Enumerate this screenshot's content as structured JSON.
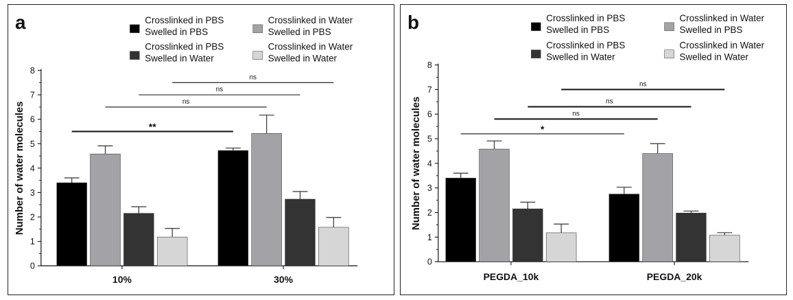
{
  "colors": {
    "pbs_pbs": "#000000",
    "water_pbs": "#a3a3a7",
    "pbs_water": "#333333",
    "water_water": "#d6d6d6"
  },
  "chart_data": [
    {
      "type": "bar",
      "panel_label": "a",
      "title": "",
      "xlabel": "",
      "ylabel": "Number of water molecules",
      "ylim": [
        0,
        8
      ],
      "yticks": [
        "0",
        "1",
        "2",
        "3",
        "4",
        "5",
        "6",
        "7",
        "8"
      ],
      "categories": [
        "10%",
        "30%"
      ],
      "legend": [
        {
          "key": "pbs_pbs",
          "line1": "Crosslinked in PBS",
          "line2": "Swelled in PBS"
        },
        {
          "key": "water_pbs",
          "line1": "Crosslinked in Water",
          "line2": "Swelled in PBS"
        },
        {
          "key": "pbs_water",
          "line1": "Crosslinked in PBS",
          "line2": "Swelled in Water"
        },
        {
          "key": "water_water",
          "line1": "Crosslinked in Water",
          "line2": "Swelled in Water"
        }
      ],
      "series": [
        {
          "name": "Crosslinked in PBS Swelled in PBS",
          "key": "pbs_pbs",
          "values": [
            3.4,
            4.72
          ],
          "errors": [
            0.2,
            0.1
          ]
        },
        {
          "name": "Crosslinked in Water Swelled in PBS",
          "key": "water_pbs",
          "values": [
            4.58,
            5.42
          ],
          "errors": [
            0.33,
            0.75
          ]
        },
        {
          "name": "Crosslinked in PBS Swelled in Water",
          "key": "pbs_water",
          "values": [
            2.15,
            2.73
          ],
          "errors": [
            0.27,
            0.31
          ]
        },
        {
          "name": "Crosslinked in Water Swelled in Water",
          "key": "water_water",
          "values": [
            1.18,
            1.58
          ],
          "errors": [
            0.35,
            0.4
          ]
        }
      ],
      "significance": [
        {
          "label": "**",
          "from": [
            0,
            0
          ],
          "to": [
            1,
            0
          ],
          "y": 5.5,
          "thick": true
        },
        {
          "label": "ns",
          "from": [
            0,
            1
          ],
          "to": [
            1,
            1
          ],
          "y": 6.5,
          "thick": false
        },
        {
          "label": "ns",
          "from": [
            0,
            2
          ],
          "to": [
            1,
            2
          ],
          "y": 7.0,
          "thick": false
        },
        {
          "label": "ns",
          "from": [
            0,
            3
          ],
          "to": [
            1,
            3
          ],
          "y": 7.5,
          "thick": false
        }
      ]
    },
    {
      "type": "bar",
      "panel_label": "b",
      "title": "",
      "xlabel": "",
      "ylabel": "Number of water molecules",
      "ylim": [
        0,
        8
      ],
      "yticks": [
        "0",
        "1",
        "2",
        "3",
        "4",
        "5",
        "6",
        "7",
        "8"
      ],
      "categories": [
        "PEGDA_10k",
        "PEGDA_20k"
      ],
      "legend": [
        {
          "key": "pbs_pbs",
          "line1": "Crosslinked in PBS",
          "line2": "Swelled in PBS"
        },
        {
          "key": "water_pbs",
          "line1": "Crosslinked in Water",
          "line2": "Swelled in PBS"
        },
        {
          "key": "pbs_water",
          "line1": "Crosslinked in PBS",
          "line2": "Swelled in Water"
        },
        {
          "key": "water_water",
          "line1": "Crosslinked in Water",
          "line2": "Swelled in Water"
        }
      ],
      "series": [
        {
          "name": "Crosslinked in PBS Swelled in PBS",
          "key": "pbs_pbs",
          "values": [
            3.4,
            2.75
          ],
          "errors": [
            0.2,
            0.28
          ]
        },
        {
          "name": "Crosslinked in Water Swelled in PBS",
          "key": "water_pbs",
          "values": [
            4.58,
            4.4
          ],
          "errors": [
            0.33,
            0.4
          ]
        },
        {
          "name": "Crosslinked in PBS Swelled in Water",
          "key": "pbs_water",
          "values": [
            2.15,
            1.98
          ],
          "errors": [
            0.27,
            0.08
          ]
        },
        {
          "name": "Crosslinked in Water Swelled in Water",
          "key": "water_water",
          "values": [
            1.18,
            1.08
          ],
          "errors": [
            0.35,
            0.1
          ]
        }
      ],
      "significance": [
        {
          "label": "*",
          "from": [
            0,
            0
          ],
          "to": [
            1,
            0
          ],
          "y": 5.2,
          "thick": false
        },
        {
          "label": "ns",
          "from": [
            0,
            1
          ],
          "to": [
            1,
            1
          ],
          "y": 5.8,
          "thick": true
        },
        {
          "label": "ns",
          "from": [
            0,
            2
          ],
          "to": [
            1,
            2
          ],
          "y": 6.3,
          "thick": true
        },
        {
          "label": "ns",
          "from": [
            0,
            3
          ],
          "to": [
            1,
            3
          ],
          "y": 7.0,
          "thick": true
        }
      ]
    }
  ]
}
